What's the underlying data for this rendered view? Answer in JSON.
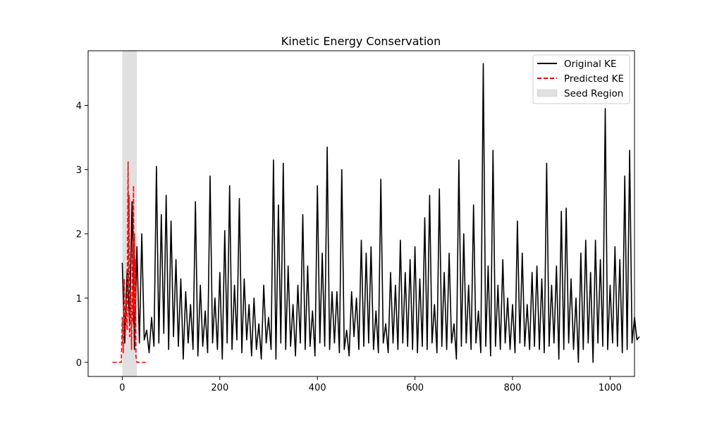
{
  "chart_data": {
    "type": "line",
    "title": "Kinetic Energy Conservation",
    "xlabel": "",
    "ylabel": "",
    "xlim": [
      -70,
      1050
    ],
    "ylim": [
      -0.22,
      4.85
    ],
    "xticks": [
      0,
      200,
      400,
      600,
      800,
      1000
    ],
    "yticks": [
      0,
      1,
      2,
      3,
      4
    ],
    "legend_position": "top-right",
    "grid": false,
    "seed_region": {
      "label": "Seed Region",
      "x_start": 0,
      "x_end": 30,
      "color": "#e0e0e0"
    },
    "series": [
      {
        "name": "Original KE",
        "color": "#000000",
        "style": "solid",
        "x_start": 0,
        "x_step": 5,
        "values": [
          1.55,
          0.3,
          1.45,
          0.6,
          2.5,
          0.2,
          1.8,
          0.3,
          2.0,
          0.35,
          0.5,
          0.15,
          0.7,
          0.25,
          3.05,
          0.3,
          2.3,
          0.45,
          2.6,
          0.2,
          2.2,
          0.4,
          1.6,
          0.25,
          1.3,
          0.05,
          1.1,
          0.3,
          0.9,
          0.2,
          2.5,
          0.1,
          1.2,
          0.25,
          0.8,
          0.15,
          2.9,
          0.3,
          1.0,
          0.2,
          1.4,
          0.05,
          2.05,
          0.3,
          2.75,
          0.2,
          1.2,
          0.35,
          2.55,
          0.15,
          1.3,
          0.35,
          0.9,
          0.1,
          1.0,
          0.2,
          0.6,
          0.05,
          1.2,
          0.3,
          0.7,
          0.2,
          3.15,
          0.05,
          2.45,
          0.3,
          3.1,
          0.2,
          1.5,
          0.25,
          0.9,
          0.1,
          1.2,
          0.3,
          2.3,
          0.2,
          1.5,
          0.25,
          0.8,
          0.1,
          2.75,
          0.3,
          1.7,
          0.25,
          3.35,
          0.2,
          1.1,
          0.3,
          1.1,
          0.15,
          3.0,
          0.2,
          0.5,
          0.1,
          1.1,
          0.4,
          1.0,
          0.2,
          1.9,
          0.25,
          1.7,
          0.3,
          1.8,
          0.2,
          0.8,
          0.15,
          2.85,
          0.3,
          0.6,
          0.15,
          1.4,
          0.3,
          1.2,
          0.2,
          1.9,
          0.3,
          1.4,
          0.25,
          1.6,
          0.2,
          1.8,
          0.15,
          1.3,
          0.25,
          2.25,
          0.2,
          2.6,
          0.3,
          0.9,
          0.15,
          2.7,
          0.25,
          1.4,
          0.2,
          1.7,
          0.3,
          0.6,
          0.05,
          3.15,
          0.25,
          2.0,
          0.3,
          1.2,
          0.2,
          2.45,
          0.3,
          0.8,
          0.15,
          4.65,
          0.25,
          1.5,
          0.1,
          3.3,
          0.25,
          1.2,
          0.2,
          1.6,
          0.3,
          1.0,
          0.2,
          0.9,
          0.15,
          2.2,
          0.3,
          1.7,
          0.25,
          0.9,
          0.2,
          1.4,
          0.25,
          1.5,
          0.2,
          1.3,
          0.15,
          3.1,
          0.25,
          1.2,
          0.3,
          1.5,
          0.05,
          2.35,
          0.2,
          2.4,
          0.3,
          1.3,
          0.2,
          1.0,
          0.0,
          1.7,
          0.2,
          1.9,
          0.3,
          1.4,
          0.0,
          1.9,
          0.3,
          1.6,
          0.25,
          3.95,
          0.2,
          1.2,
          0.3,
          1.8,
          0.25,
          1.6,
          0.15,
          2.9,
          0.2,
          3.3,
          0.3,
          0.7,
          0.35,
          0.4
        ]
      },
      {
        "name": "Predicted KE",
        "color": "#ff0000",
        "style": "dashed",
        "points": [
          [
            -20,
            0.0
          ],
          [
            -2,
            0.0
          ],
          [
            0,
            0.7
          ],
          [
            2,
            0.15
          ],
          [
            4,
            1.3
          ],
          [
            6,
            0.4
          ],
          [
            8,
            1.0
          ],
          [
            10,
            0.5
          ],
          [
            11,
            2.0
          ],
          [
            12,
            3.12
          ],
          [
            13,
            1.2
          ],
          [
            14,
            2.6
          ],
          [
            15,
            0.4
          ],
          [
            17,
            1.1
          ],
          [
            19,
            0.2
          ],
          [
            21,
            1.9
          ],
          [
            22,
            0.6
          ],
          [
            23,
            2.75
          ],
          [
            24,
            0.8
          ],
          [
            25,
            2.0
          ],
          [
            26,
            0.3
          ],
          [
            27,
            1.6
          ],
          [
            28,
            0.1
          ],
          [
            30,
            0.0
          ],
          [
            48,
            0.0
          ]
        ]
      }
    ]
  }
}
